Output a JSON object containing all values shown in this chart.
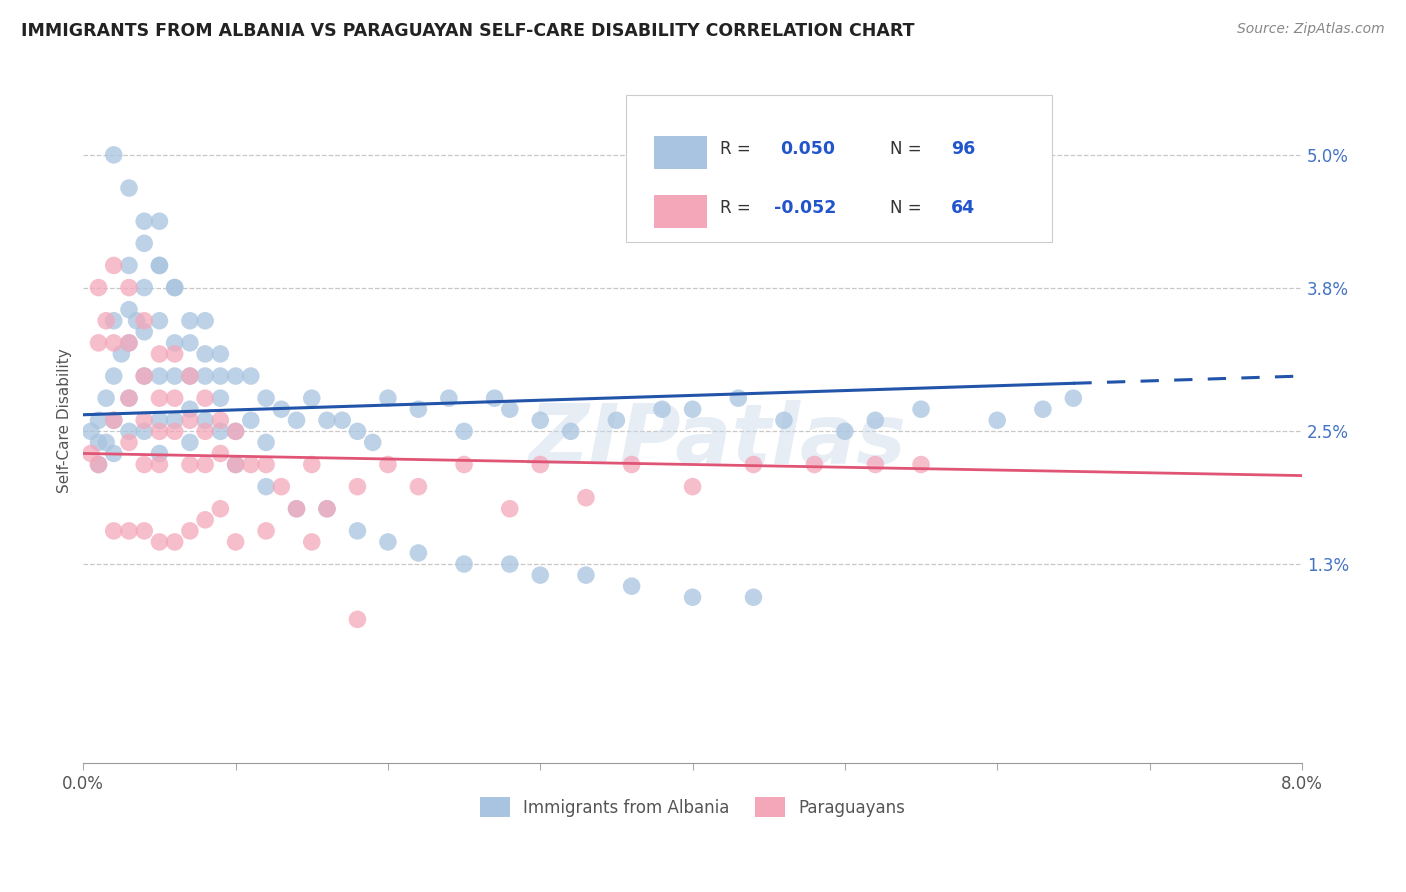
{
  "title": "IMMIGRANTS FROM ALBANIA VS PARAGUAYAN SELF-CARE DISABILITY CORRELATION CHART",
  "source": "Source: ZipAtlas.com",
  "ylabel": "Self-Care Disability",
  "ytick_vals": [
    0.013,
    0.025,
    0.038,
    0.05
  ],
  "ytick_labels": [
    "1.3%",
    "2.5%",
    "3.8%",
    "5.0%"
  ],
  "xlim": [
    0.0,
    0.08
  ],
  "ylim": [
    -0.005,
    0.057
  ],
  "legend_r_blue": "0.050",
  "legend_n_blue": "96",
  "legend_r_pink": "-0.052",
  "legend_n_pink": "64",
  "blue_color": "#a8c4e0",
  "pink_color": "#f4a7b9",
  "trendline_blue": "#2255aa",
  "trendline_pink": "#e05575",
  "watermark": "ZIPatlas",
  "blue_scatter_x": [
    0.0005,
    0.001,
    0.001,
    0.001,
    0.0015,
    0.0015,
    0.002,
    0.002,
    0.002,
    0.002,
    0.0025,
    0.003,
    0.003,
    0.003,
    0.003,
    0.003,
    0.0035,
    0.004,
    0.004,
    0.004,
    0.004,
    0.004,
    0.005,
    0.005,
    0.005,
    0.005,
    0.005,
    0.005,
    0.006,
    0.006,
    0.006,
    0.006,
    0.007,
    0.007,
    0.007,
    0.007,
    0.008,
    0.008,
    0.008,
    0.009,
    0.009,
    0.009,
    0.01,
    0.01,
    0.011,
    0.011,
    0.012,
    0.012,
    0.013,
    0.014,
    0.015,
    0.016,
    0.017,
    0.018,
    0.019,
    0.02,
    0.022,
    0.024,
    0.025,
    0.027,
    0.028,
    0.03,
    0.032,
    0.035,
    0.038,
    0.04,
    0.043,
    0.046,
    0.05,
    0.052,
    0.055,
    0.06,
    0.063,
    0.065,
    0.002,
    0.003,
    0.004,
    0.005,
    0.006,
    0.007,
    0.008,
    0.009,
    0.01,
    0.012,
    0.014,
    0.016,
    0.018,
    0.02,
    0.022,
    0.025,
    0.028,
    0.03,
    0.033,
    0.036,
    0.04,
    0.044
  ],
  "blue_scatter_y": [
    0.025,
    0.026,
    0.024,
    0.022,
    0.028,
    0.024,
    0.035,
    0.03,
    0.026,
    0.023,
    0.032,
    0.04,
    0.036,
    0.033,
    0.028,
    0.025,
    0.035,
    0.042,
    0.038,
    0.034,
    0.03,
    0.025,
    0.044,
    0.04,
    0.035,
    0.03,
    0.026,
    0.023,
    0.038,
    0.033,
    0.03,
    0.026,
    0.033,
    0.03,
    0.027,
    0.024,
    0.035,
    0.03,
    0.026,
    0.032,
    0.028,
    0.025,
    0.03,
    0.025,
    0.03,
    0.026,
    0.028,
    0.024,
    0.027,
    0.026,
    0.028,
    0.026,
    0.026,
    0.025,
    0.024,
    0.028,
    0.027,
    0.028,
    0.025,
    0.028,
    0.027,
    0.026,
    0.025,
    0.026,
    0.027,
    0.027,
    0.028,
    0.026,
    0.025,
    0.026,
    0.027,
    0.026,
    0.027,
    0.028,
    0.05,
    0.047,
    0.044,
    0.04,
    0.038,
    0.035,
    0.032,
    0.03,
    0.022,
    0.02,
    0.018,
    0.018,
    0.016,
    0.015,
    0.014,
    0.013,
    0.013,
    0.012,
    0.012,
    0.011,
    0.01,
    0.01
  ],
  "pink_scatter_x": [
    0.0005,
    0.001,
    0.001,
    0.001,
    0.0015,
    0.002,
    0.002,
    0.002,
    0.003,
    0.003,
    0.003,
    0.003,
    0.004,
    0.004,
    0.004,
    0.004,
    0.005,
    0.005,
    0.005,
    0.005,
    0.006,
    0.006,
    0.006,
    0.007,
    0.007,
    0.007,
    0.008,
    0.008,
    0.008,
    0.009,
    0.009,
    0.01,
    0.01,
    0.011,
    0.012,
    0.013,
    0.014,
    0.015,
    0.016,
    0.018,
    0.02,
    0.022,
    0.025,
    0.028,
    0.03,
    0.033,
    0.036,
    0.04,
    0.044,
    0.048,
    0.052,
    0.055,
    0.002,
    0.003,
    0.004,
    0.005,
    0.006,
    0.007,
    0.008,
    0.009,
    0.01,
    0.012,
    0.015,
    0.018
  ],
  "pink_scatter_y": [
    0.023,
    0.038,
    0.033,
    0.022,
    0.035,
    0.04,
    0.033,
    0.026,
    0.038,
    0.033,
    0.028,
    0.024,
    0.035,
    0.03,
    0.026,
    0.022,
    0.032,
    0.028,
    0.025,
    0.022,
    0.032,
    0.028,
    0.025,
    0.03,
    0.026,
    0.022,
    0.028,
    0.025,
    0.022,
    0.026,
    0.023,
    0.025,
    0.022,
    0.022,
    0.022,
    0.02,
    0.018,
    0.022,
    0.018,
    0.02,
    0.022,
    0.02,
    0.022,
    0.018,
    0.022,
    0.019,
    0.022,
    0.02,
    0.022,
    0.022,
    0.022,
    0.022,
    0.016,
    0.016,
    0.016,
    0.015,
    0.015,
    0.016,
    0.017,
    0.018,
    0.015,
    0.016,
    0.015,
    0.008
  ],
  "xtick_count": 9
}
